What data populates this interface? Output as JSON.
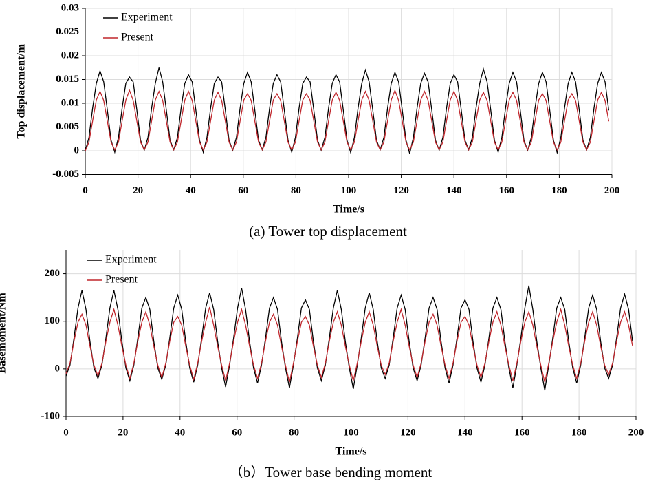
{
  "chart_data": [
    {
      "type": "line",
      "title": "(a) Tower top displacement",
      "xlabel": "Time/s",
      "ylabel": "Top displacement/m",
      "xlim": [
        0,
        200
      ],
      "xticks": [
        0,
        20,
        40,
        60,
        80,
        100,
        120,
        140,
        160,
        180,
        200
      ],
      "ylim": [
        -0.005,
        0.03
      ],
      "yticks": [
        -0.005,
        0,
        0.005,
        0.01,
        0.015,
        0.02,
        0.025,
        0.03
      ],
      "grid": true,
      "legend": "upper left",
      "x": [
        0,
        1.4,
        2.8,
        4.2,
        5.6,
        7,
        8.4,
        9.8,
        11.2,
        12.6,
        14,
        15.4,
        16.8,
        18.2,
        19.6,
        21,
        22.4,
        23.8,
        25.2,
        26.6,
        28,
        29.4,
        30.8,
        32.2,
        33.6,
        35,
        36.4,
        37.8,
        39.2,
        40.6,
        42,
        43.4,
        44.8,
        46.2,
        47.6,
        49,
        50.4,
        51.8,
        53.2,
        54.6,
        56,
        57.4,
        58.8,
        60.2,
        61.6,
        63,
        64.4,
        65.8,
        67.2,
        68.6,
        70,
        71.4,
        72.8,
        74.2,
        75.6,
        77,
        78.4,
        79.8,
        81.2,
        82.6,
        84,
        85.4,
        86.8,
        88.2,
        89.6,
        91,
        92.4,
        93.8,
        95.2,
        96.6,
        98,
        99.4,
        100.8,
        102.2,
        103.6,
        105,
        106.4,
        107.8,
        109.2,
        110.6,
        112,
        113.4,
        114.8,
        116.2,
        117.6,
        119,
        120.4,
        121.8,
        123.2,
        124.6,
        126,
        127.4,
        128.8,
        130.2,
        131.6,
        133,
        134.4,
        135.8,
        137.2,
        138.6,
        140,
        141.4,
        142.8,
        144.2,
        145.6,
        147,
        148.4,
        149.8,
        151.2,
        152.6,
        154,
        155.4,
        156.8,
        158.2,
        159.6,
        161,
        162.4,
        163.8,
        165.2,
        166.6,
        168,
        169.4,
        170.8,
        172.2,
        173.6,
        175,
        176.4,
        177.8,
        179.2,
        180.6,
        182,
        183.4,
        184.8,
        186.2,
        187.6,
        189,
        190.4,
        191.8,
        193.2,
        194.6,
        196,
        197.4,
        198.8
      ],
      "series": [
        {
          "name": "Experiment",
          "color": "#000000",
          "values": [
            0,
            0.0028,
            0.009,
            0.0142,
            0.0168,
            0.0145,
            0.0085,
            0.0022,
            -0.0003,
            0.0028,
            0.009,
            0.0142,
            0.0155,
            0.0145,
            0.0085,
            0.0022,
            0.0001,
            0.0028,
            0.009,
            0.0142,
            0.0175,
            0.0145,
            0.0085,
            0.0022,
            0.0002,
            0.0028,
            0.009,
            0.0142,
            0.016,
            0.0145,
            0.0085,
            0.0022,
            -0.0003,
            0.0028,
            0.009,
            0.0142,
            0.0155,
            0.0145,
            0.0085,
            0.0022,
            0.0001,
            0.0028,
            0.009,
            0.0142,
            0.0165,
            0.0145,
            0.0085,
            0.0022,
            0.0002,
            0.0028,
            0.009,
            0.0142,
            0.016,
            0.0145,
            0.0085,
            0.0022,
            -0.0003,
            0.0028,
            0.009,
            0.0142,
            0.0155,
            0.0145,
            0.0085,
            0.0022,
            0.0001,
            0.0028,
            0.009,
            0.0142,
            0.016,
            0.0145,
            0.0085,
            0.0022,
            -0.0004,
            0.0028,
            0.009,
            0.0142,
            0.017,
            0.0145,
            0.0085,
            0.0022,
            0.0002,
            0.0028,
            0.009,
            0.0142,
            0.0165,
            0.0145,
            0.0085,
            0.0022,
            -0.0006,
            0.0028,
            0.009,
            0.0142,
            0.0163,
            0.0145,
            0.0085,
            0.0022,
            0.0001,
            0.0028,
            0.009,
            0.0142,
            0.016,
            0.0145,
            0.0085,
            0.0022,
            0.0002,
            0.0028,
            0.009,
            0.0142,
            0.0172,
            0.0145,
            0.0085,
            0.0022,
            -0.0003,
            0.0028,
            0.009,
            0.0142,
            0.0165,
            0.0145,
            0.0085,
            0.0022,
            0.0001,
            0.0028,
            0.009,
            0.0142,
            0.0165,
            0.0145,
            0.0085,
            0.0022,
            -0.0004,
            0.0028,
            0.009,
            0.0142,
            0.0165,
            0.0145,
            0.0085,
            0.0022,
            0.0002,
            0.0028,
            0.009,
            0.0142,
            0.0165,
            0.0145,
            0.0085
          ]
        },
        {
          "name": "Present",
          "color": "#c0262c",
          "values": [
            0,
            0.0018,
            0.0063,
            0.0107,
            0.0125,
            0.0106,
            0.0062,
            0.0018,
            0.0002,
            0.0018,
            0.0063,
            0.0107,
            0.0127,
            0.0106,
            0.0062,
            0.0018,
            0.0002,
            0.0018,
            0.0063,
            0.0107,
            0.0125,
            0.0106,
            0.0062,
            0.0018,
            0.0002,
            0.0018,
            0.0063,
            0.0107,
            0.0125,
            0.0106,
            0.0062,
            0.0018,
            0.0002,
            0.0018,
            0.0063,
            0.0107,
            0.0123,
            0.0106,
            0.0062,
            0.0018,
            0.0002,
            0.0018,
            0.0063,
            0.0107,
            0.012,
            0.0106,
            0.0062,
            0.0018,
            0.0002,
            0.0018,
            0.0063,
            0.0107,
            0.012,
            0.0106,
            0.0062,
            0.0018,
            0.0002,
            0.0018,
            0.0063,
            0.0107,
            0.012,
            0.0106,
            0.0062,
            0.0018,
            0.0002,
            0.0018,
            0.0063,
            0.0107,
            0.0123,
            0.0106,
            0.0062,
            0.0018,
            0.0002,
            0.0018,
            0.0063,
            0.0107,
            0.0125,
            0.0106,
            0.0062,
            0.0018,
            0.0002,
            0.0018,
            0.0063,
            0.0107,
            0.0127,
            0.0106,
            0.0062,
            0.0018,
            0.0002,
            0.0018,
            0.0063,
            0.0107,
            0.0125,
            0.0106,
            0.0062,
            0.0018,
            0.0002,
            0.0018,
            0.0063,
            0.0107,
            0.0125,
            0.0106,
            0.0062,
            0.0018,
            0.0002,
            0.0018,
            0.0063,
            0.0107,
            0.0123,
            0.0106,
            0.0062,
            0.0018,
            0.0002,
            0.0018,
            0.0063,
            0.0107,
            0.0123,
            0.0106,
            0.0062,
            0.0018,
            0.0002,
            0.0018,
            0.0063,
            0.0107,
            0.012,
            0.0106,
            0.0062,
            0.0018,
            0.0002,
            0.0018,
            0.0063,
            0.0107,
            0.012,
            0.0106,
            0.0062,
            0.0018,
            0.0002,
            0.0018,
            0.0063,
            0.0107,
            0.0123,
            0.0106,
            0.0062
          ]
        }
      ]
    },
    {
      "type": "line",
      "title": "（b）Tower base bending moment",
      "xlabel": "Time/s",
      "ylabel": "Basemoment/Nm",
      "xlim": [
        0,
        200
      ],
      "xticks": [
        0,
        20,
        40,
        60,
        80,
        100,
        120,
        140,
        160,
        180,
        200
      ],
      "ylim": [
        -100,
        250
      ],
      "yticks": [
        -100,
        0,
        100,
        200
      ],
      "grid": true,
      "legend": "upper left",
      "x": [
        0,
        1.4,
        2.8,
        4.2,
        5.6,
        7,
        8.4,
        9.8,
        11.2,
        12.6,
        14,
        15.4,
        16.8,
        18.2,
        19.6,
        21,
        22.4,
        23.8,
        25.2,
        26.6,
        28,
        29.4,
        30.8,
        32.2,
        33.6,
        35,
        36.4,
        37.8,
        39.2,
        40.6,
        42,
        43.4,
        44.8,
        46.2,
        47.6,
        49,
        50.4,
        51.8,
        53.2,
        54.6,
        56,
        57.4,
        58.8,
        60.2,
        61.6,
        63,
        64.4,
        65.8,
        67.2,
        68.6,
        70,
        71.4,
        72.8,
        74.2,
        75.6,
        77,
        78.4,
        79.8,
        81.2,
        82.6,
        84,
        85.4,
        86.8,
        88.2,
        89.6,
        91,
        92.4,
        93.8,
        95.2,
        96.6,
        98,
        99.4,
        100.8,
        102.2,
        103.6,
        105,
        106.4,
        107.8,
        109.2,
        110.6,
        112,
        113.4,
        114.8,
        116.2,
        117.6,
        119,
        120.4,
        121.8,
        123.2,
        124.6,
        126,
        127.4,
        128.8,
        130.2,
        131.6,
        133,
        134.4,
        135.8,
        137.2,
        138.6,
        140,
        141.4,
        142.8,
        144.2,
        145.6,
        147,
        148.4,
        149.8,
        151.2,
        152.6,
        154,
        155.4,
        156.8,
        158.2,
        159.6,
        161,
        162.4,
        163.8,
        165.2,
        166.6,
        168,
        169.4,
        170.8,
        172.2,
        173.6,
        175,
        176.4,
        177.8,
        179.2,
        180.6,
        182,
        183.4,
        184.8,
        186.2,
        187.6,
        189,
        190.4,
        191.8,
        193.2,
        194.6,
        196,
        197.4,
        198.8
      ],
      "series": [
        {
          "name": "Experiment",
          "color": "#000000",
          "values": [
            -15,
            8,
            65,
            128,
            165,
            125,
            58,
            2,
            -20,
            8,
            65,
            128,
            165,
            125,
            58,
            2,
            -25,
            8,
            65,
            128,
            150,
            125,
            58,
            2,
            -22,
            8,
            65,
            128,
            155,
            125,
            58,
            2,
            -28,
            8,
            65,
            128,
            160,
            125,
            58,
            2,
            -38,
            8,
            65,
            128,
            170,
            125,
            58,
            2,
            -30,
            8,
            65,
            128,
            150,
            125,
            58,
            2,
            -40,
            8,
            65,
            128,
            145,
            125,
            58,
            2,
            -25,
            8,
            65,
            128,
            165,
            125,
            58,
            2,
            -42,
            8,
            65,
            128,
            160,
            125,
            58,
            2,
            -20,
            8,
            65,
            128,
            155,
            125,
            58,
            2,
            -25,
            8,
            65,
            128,
            150,
            125,
            58,
            2,
            -30,
            8,
            65,
            128,
            145,
            125,
            58,
            2,
            -28,
            8,
            65,
            128,
            150,
            125,
            58,
            2,
            -40,
            8,
            65,
            128,
            175,
            125,
            58,
            2,
            -45,
            8,
            65,
            128,
            150,
            125,
            58,
            2,
            -30,
            8,
            65,
            128,
            155,
            125,
            58,
            2,
            -20,
            8,
            65,
            128,
            157,
            125,
            58
          ]
        },
        {
          "name": "Present",
          "color": "#c0262c",
          "values": [
            -10,
            12,
            58,
            98,
            115,
            92,
            48,
            8,
            -15,
            12,
            58,
            98,
            125,
            92,
            48,
            8,
            -20,
            12,
            58,
            98,
            120,
            92,
            48,
            8,
            -18,
            12,
            58,
            98,
            110,
            92,
            48,
            8,
            -22,
            12,
            58,
            98,
            130,
            92,
            48,
            8,
            -25,
            12,
            58,
            98,
            125,
            92,
            48,
            8,
            -20,
            12,
            58,
            98,
            115,
            92,
            48,
            8,
            -28,
            12,
            58,
            98,
            110,
            92,
            48,
            8,
            -18,
            12,
            58,
            98,
            120,
            92,
            48,
            8,
            -25,
            12,
            58,
            98,
            120,
            92,
            48,
            8,
            -12,
            12,
            58,
            98,
            125,
            92,
            48,
            8,
            -18,
            12,
            58,
            98,
            115,
            92,
            48,
            8,
            -20,
            12,
            58,
            98,
            110,
            92,
            48,
            8,
            -18,
            12,
            58,
            98,
            120,
            92,
            48,
            8,
            -25,
            12,
            58,
            98,
            120,
            92,
            48,
            8,
            -28,
            12,
            58,
            98,
            125,
            92,
            48,
            8,
            -20,
            12,
            58,
            98,
            120,
            92,
            48,
            8,
            -12,
            12,
            58,
            98,
            120,
            92,
            48
          ]
        }
      ]
    }
  ]
}
